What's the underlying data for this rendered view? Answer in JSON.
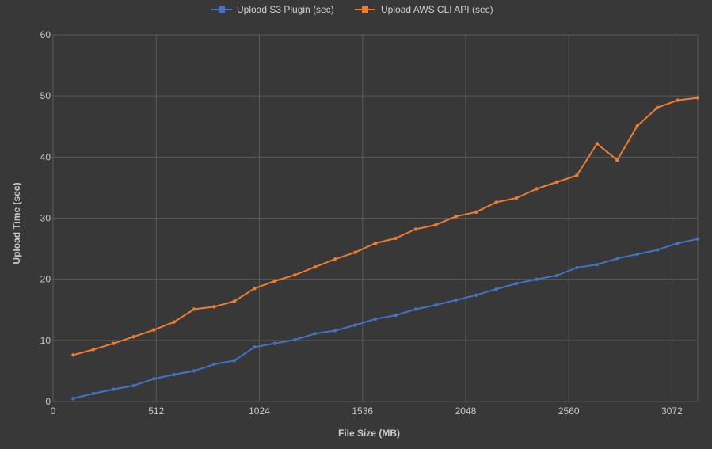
{
  "colors": {
    "background": "#383838",
    "grid": "#5a5a5a",
    "series_s3": "#4472c4",
    "series_cli": "#ed7d31"
  },
  "chart_data": {
    "type": "line",
    "title": "",
    "xlabel": "File Size (MB)",
    "ylabel": "Upload Time (sec)",
    "xlim": [
      0,
      3200
    ],
    "ylim": [
      0,
      60
    ],
    "x_ticks": [
      0,
      512,
      1024,
      1536,
      2048,
      2560,
      3072
    ],
    "y_ticks": [
      0,
      10,
      20,
      30,
      40,
      50,
      60
    ],
    "legend_position": "top-center",
    "grid": true,
    "x": [
      100,
      200,
      300,
      400,
      500,
      600,
      700,
      800,
      900,
      1000,
      1100,
      1200,
      1300,
      1400,
      1500,
      1600,
      1700,
      1800,
      1900,
      2000,
      2100,
      2200,
      2300,
      2400,
      2500,
      2600,
      2700,
      2800,
      2900,
      3000,
      3100,
      3200
    ],
    "series": [
      {
        "name": "Upload S3 Plugin (sec)",
        "color": "#4472c4",
        "values": [
          0.5,
          1.3,
          2.0,
          2.6,
          3.7,
          4.4,
          5.0,
          6.1,
          6.7,
          8.9,
          9.5,
          10.1,
          11.1,
          11.6,
          12.5,
          13.5,
          14.1,
          15.1,
          15.8,
          16.6,
          17.4,
          18.4,
          19.3,
          20.0,
          20.6,
          21.9,
          22.4,
          23.4,
          24.1,
          24.8,
          25.9,
          26.6
        ]
      },
      {
        "name": "Upload AWS CLI API (sec)",
        "color": "#ed7d31",
        "values": [
          7.6,
          8.5,
          9.5,
          10.6,
          11.7,
          13.0,
          15.1,
          15.5,
          16.4,
          18.5,
          19.7,
          20.7,
          22.0,
          23.3,
          24.4,
          25.9,
          26.7,
          28.2,
          28.9,
          30.3,
          31.0,
          32.6,
          33.3,
          34.8,
          35.9,
          37.0,
          42.2,
          39.5,
          45.1,
          48.1,
          49.3,
          49.7
        ]
      }
    ]
  }
}
